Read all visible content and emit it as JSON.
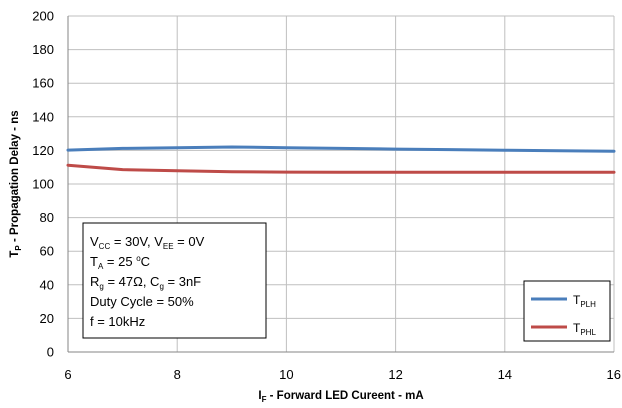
{
  "chart_data": {
    "type": "line",
    "xlabel": {
      "main": "I",
      "sub": "F",
      "rest": " - Forward LED Cureent - mA"
    },
    "ylabel": {
      "main": "T",
      "sub": "P",
      "rest": " - Propagation Delay - ns"
    },
    "xlim": [
      6,
      16
    ],
    "ylim": [
      0,
      200
    ],
    "xticks": [
      6,
      8,
      10,
      12,
      14,
      16
    ],
    "yticks": [
      0,
      20,
      40,
      60,
      80,
      100,
      120,
      140,
      160,
      180,
      200
    ],
    "grid": true,
    "legend_position": "bottom-right",
    "series": [
      {
        "name": {
          "main": "T",
          "sub": "PLH"
        },
        "color": "#4a7ebb",
        "x": [
          6,
          7,
          8,
          9,
          10,
          11,
          12,
          13,
          14,
          15,
          16
        ],
        "y": [
          120.2,
          121.2,
          121.6,
          122.0,
          121.6,
          121.2,
          120.8,
          120.5,
          120.1,
          119.8,
          119.5
        ]
      },
      {
        "name": {
          "main": "T",
          "sub": "PHL"
        },
        "color": "#be4b48",
        "x": [
          6,
          7,
          8,
          9,
          10,
          11,
          12,
          13,
          14,
          15,
          16
        ],
        "y": [
          111.2,
          108.6,
          107.9,
          107.3,
          107.1,
          107.0,
          107.0,
          107.0,
          107.0,
          107.0,
          107.0
        ]
      }
    ],
    "annotation": [
      [
        {
          "t": "V"
        },
        {
          "t": "CC",
          "sub": true
        },
        {
          "t": " = 30V, V"
        },
        {
          "t": "EE",
          "sub": true
        },
        {
          "t": " = 0V"
        }
      ],
      [
        {
          "t": "T"
        },
        {
          "t": "A",
          "sub": true
        },
        {
          "t": " = 25 "
        },
        {
          "t": "o",
          "sup": true
        },
        {
          "t": "C"
        }
      ],
      [
        {
          "t": "R"
        },
        {
          "t": "g",
          "sub": true
        },
        {
          "t": " = 47Ω, C"
        },
        {
          "t": "g",
          "sub": true
        },
        {
          "t": " = 3nF"
        }
      ],
      [
        {
          "t": "Duty Cycle = 50%"
        }
      ],
      [
        {
          "t": "f = 10kHz"
        }
      ]
    ]
  }
}
